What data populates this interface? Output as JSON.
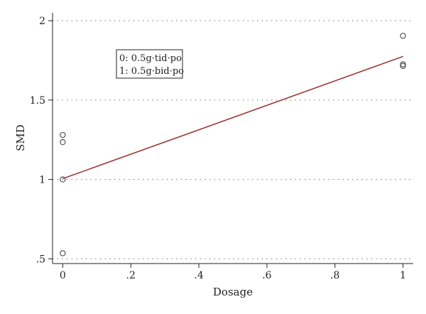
{
  "chart_data": {
    "type": "scatter",
    "title": "",
    "xlabel": "Dosage",
    "ylabel": "SMD",
    "xlim": [
      -0.03,
      1.03
    ],
    "ylim": [
      0.47,
      2.05
    ],
    "xticks": [
      0,
      0.2,
      0.4,
      0.6,
      0.8,
      1
    ],
    "xtick_labels": [
      "0",
      ".2",
      ".4",
      ".6",
      ".8",
      "1"
    ],
    "yticks": [
      0.5,
      1,
      1.5,
      2
    ],
    "ytick_labels": [
      ".5",
      "1",
      "1.5",
      "2"
    ],
    "grid": "horizontal dotted",
    "points": [
      {
        "x": 0,
        "y": 1.28
      },
      {
        "x": 0,
        "y": 1.235
      },
      {
        "x": 0,
        "y": 1.0
      },
      {
        "x": 0,
        "y": 0.535
      },
      {
        "x": 1,
        "y": 1.905
      },
      {
        "x": 1,
        "y": 1.725
      },
      {
        "x": 1,
        "y": 1.715
      }
    ],
    "fit_line": {
      "x": [
        0,
        1
      ],
      "y": [
        1.005,
        1.775
      ],
      "color": "#9b2d2d"
    },
    "legend": {
      "placement": "top-left",
      "entries": [
        "0: 0.5g·tid·po",
        "1: 0.5g·bid·po"
      ]
    }
  }
}
